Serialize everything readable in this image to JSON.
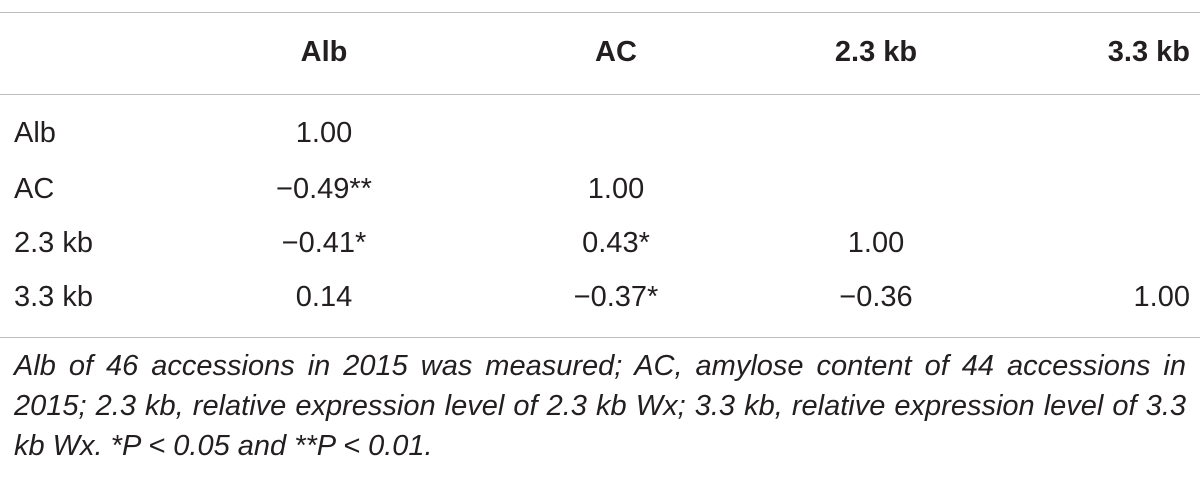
{
  "table": {
    "headers": [
      "",
      "Alb",
      "AC",
      "2.3 kb",
      "3.3 kb"
    ],
    "rows": [
      {
        "label": "Alb",
        "cells": [
          "1.00",
          "",
          "",
          ""
        ]
      },
      {
        "label": "AC",
        "cells": [
          "−0.49**",
          "1.00",
          "",
          ""
        ]
      },
      {
        "label": "2.3 kb",
        "cells": [
          "−0.41*",
          "0.43*",
          "1.00",
          ""
        ]
      },
      {
        "label": "3.3 kb",
        "cells": [
          "0.14",
          "−0.37*",
          "−0.36",
          "1.00"
        ]
      }
    ]
  },
  "footnote": "Alb of 46 accessions in 2015 was measured; AC, amylose content of 44 accessions in 2015; 2.3 kb, relative expression level of 2.3 kb Wx; 3.3 kb, relative expression level of 3.3 kb Wx. *P < 0.05 and **P < 0.01."
}
